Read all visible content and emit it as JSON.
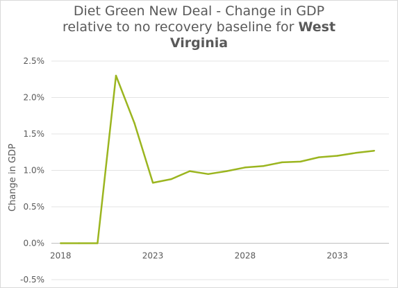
{
  "chart_data": {
    "type": "line",
    "title": "Diet Green New Deal - Change in GDP relative to no recovery baseline for West Virginia",
    "title_lines": {
      "line1": "Diet Green New Deal - Change in GDP",
      "line2_pre": "relative to no recovery baseline for ",
      "line2_bold": "West",
      "line3_bold": "Virginia"
    },
    "xlabel": "",
    "ylabel": "Change in GDP",
    "x_ticks": [
      "2018",
      "2023",
      "2028",
      "2033"
    ],
    "y_ticks": [
      "-0.5%",
      "0.0%",
      "0.5%",
      "1.0%",
      "1.5%",
      "2.0%",
      "2.5%"
    ],
    "xlim": [
      2017.5,
      2035.8
    ],
    "ylim": [
      -0.5,
      2.5
    ],
    "grid": "horizontal",
    "color": "#9bb51f",
    "series": [
      {
        "x": [
          2018,
          2019,
          2020,
          2021,
          2022,
          2023,
          2024,
          2025,
          2026,
          2027,
          2028,
          2029,
          2030,
          2031,
          2032,
          2033,
          2034,
          2035
        ],
        "values": [
          0.0,
          0.0,
          0.0,
          2.3,
          1.65,
          0.83,
          0.88,
          0.99,
          0.95,
          0.99,
          1.04,
          1.06,
          1.11,
          1.12,
          1.18,
          1.2,
          1.24,
          1.27
        ]
      }
    ]
  }
}
